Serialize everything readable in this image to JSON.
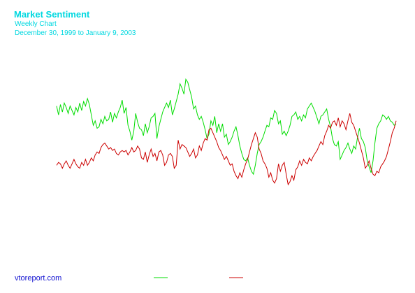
{
  "header": {
    "title": "Market Sentiment",
    "subtitle": "Weekly Chart",
    "date_range": "December 30, 1999 to January 9, 2003"
  },
  "footer": {
    "source": "vtoreport.com"
  },
  "colors": {
    "series1": "#00dd00",
    "series2": "#cc0000",
    "text": "#00d8e0",
    "footer_text": "#1010d0"
  },
  "chart_data": {
    "type": "line",
    "title": "Market Sentiment",
    "subtitle": "Weekly Chart",
    "xlabel": "",
    "ylabel": "",
    "grid": false,
    "legend": "bottom-center",
    "x_start": "December 30, 1999",
    "x_end": "January 9, 2003",
    "ylim": [
      0,
      100
    ],
    "series": [
      {
        "color": "#00dd00",
        "values": [
          70,
          64,
          71,
          66,
          72,
          69,
          65,
          70,
          67,
          64,
          69,
          66,
          72,
          67,
          73,
          70,
          75,
          71,
          64,
          57,
          60,
          55,
          56,
          61,
          58,
          63,
          60,
          61,
          66,
          59,
          65,
          62,
          66,
          69,
          74,
          65,
          69,
          57,
          53,
          47,
          53,
          65,
          59,
          55,
          54,
          50,
          58,
          52,
          56,
          62,
          63,
          65,
          48,
          56,
          61,
          66,
          69,
          72,
          69,
          74,
          64,
          68,
          73,
          78,
          85,
          82,
          78,
          88,
          86,
          81,
          76,
          68,
          70,
          64,
          61,
          63,
          59,
          54,
          48,
          51,
          60,
          57,
          63,
          52,
          58,
          53,
          58,
          49,
          51,
          44,
          46,
          49,
          53,
          56,
          50,
          43,
          38,
          34,
          33,
          35,
          30,
          26,
          24,
          30,
          38,
          44,
          46,
          49,
          53,
          57,
          56,
          62,
          61,
          67,
          65,
          58,
          60,
          51,
          53,
          50,
          53,
          57,
          63,
          64,
          66,
          61,
          63,
          60,
          64,
          62,
          68,
          70,
          72,
          69,
          66,
          62,
          58,
          63,
          64,
          66,
          68,
          61,
          56,
          48,
          44,
          43,
          46,
          34,
          37,
          40,
          42,
          45,
          41,
          38,
          43,
          41,
          49,
          55,
          48,
          46,
          42,
          33,
          29,
          25,
          33,
          45,
          55,
          58,
          60,
          64,
          63,
          61,
          63,
          60,
          59,
          57,
          58
        ]
      },
      {
        "color": "#cc0000",
        "values": [
          30,
          32,
          31,
          28,
          31,
          33,
          30,
          28,
          31,
          34,
          31,
          29,
          28,
          32,
          30,
          34,
          30,
          32,
          35,
          33,
          37,
          39,
          38,
          42,
          44,
          45,
          43,
          41,
          42,
          40,
          41,
          38,
          37,
          39,
          40,
          39,
          40,
          37,
          39,
          42,
          39,
          40,
          43,
          41,
          35,
          34,
          39,
          32,
          37,
          41,
          36,
          38,
          33,
          39,
          40,
          37,
          30,
          32,
          37,
          38,
          36,
          28,
          30,
          47,
          41,
          44,
          43,
          42,
          39,
          36,
          38,
          41,
          35,
          37,
          43,
          40,
          45,
          48,
          47,
          54,
          55,
          52,
          49,
          46,
          42,
          40,
          37,
          34,
          36,
          33,
          30,
          31,
          26,
          23,
          21,
          25,
          22,
          27,
          31,
          34,
          39,
          44,
          48,
          52,
          49,
          41,
          38,
          33,
          31,
          28,
          22,
          25,
          20,
          18,
          21,
          31,
          26,
          30,
          32,
          24,
          17,
          19,
          23,
          20,
          27,
          29,
          33,
          30,
          34,
          32,
          31,
          35,
          33,
          36,
          38,
          40,
          43,
          46,
          44,
          50,
          53,
          57,
          55,
          59,
          60,
          57,
          62,
          56,
          60,
          58,
          54,
          60,
          65,
          59,
          57,
          53,
          49,
          45,
          40,
          35,
          28,
          30,
          33,
          28,
          24,
          23,
          26,
          25,
          29,
          31,
          33,
          36,
          41,
          46,
          52,
          55,
          60
        ]
      }
    ]
  }
}
